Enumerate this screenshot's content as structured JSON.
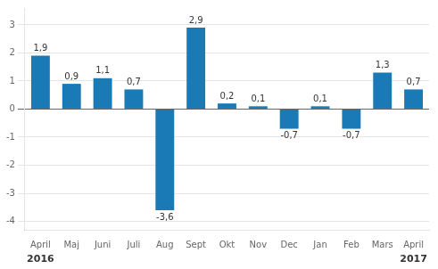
{
  "chart_data": {
    "type": "bar",
    "categories": [
      "April",
      "Maj",
      "Juni",
      "Juli",
      "Aug",
      "Sept",
      "Okt",
      "Nov",
      "Dec",
      "Jan",
      "Feb",
      "Mars",
      "April"
    ],
    "values": [
      1.9,
      0.9,
      1.1,
      0.7,
      -3.6,
      2.9,
      0.2,
      0.1,
      -0.7,
      0.1,
      -0.7,
      1.3,
      0.7
    ],
    "value_labels": [
      "1,9",
      "0,9",
      "1,1",
      "0,7",
      "-3,6",
      "2,9",
      "0,2",
      "0,1",
      "-0,7",
      "0,1",
      "-0,7",
      "1,3",
      "0,7"
    ],
    "data_labels": true,
    "color": "#1a7ab5",
    "ylim": [
      -4.3,
      3.6
    ],
    "yticks": [
      -4,
      -3,
      -2,
      -1,
      0,
      1,
      2,
      3
    ],
    "grid": true,
    "annotations": [
      {
        "text": "2016",
        "x": 0
      },
      {
        "text": "2017",
        "x": 12
      }
    ]
  }
}
